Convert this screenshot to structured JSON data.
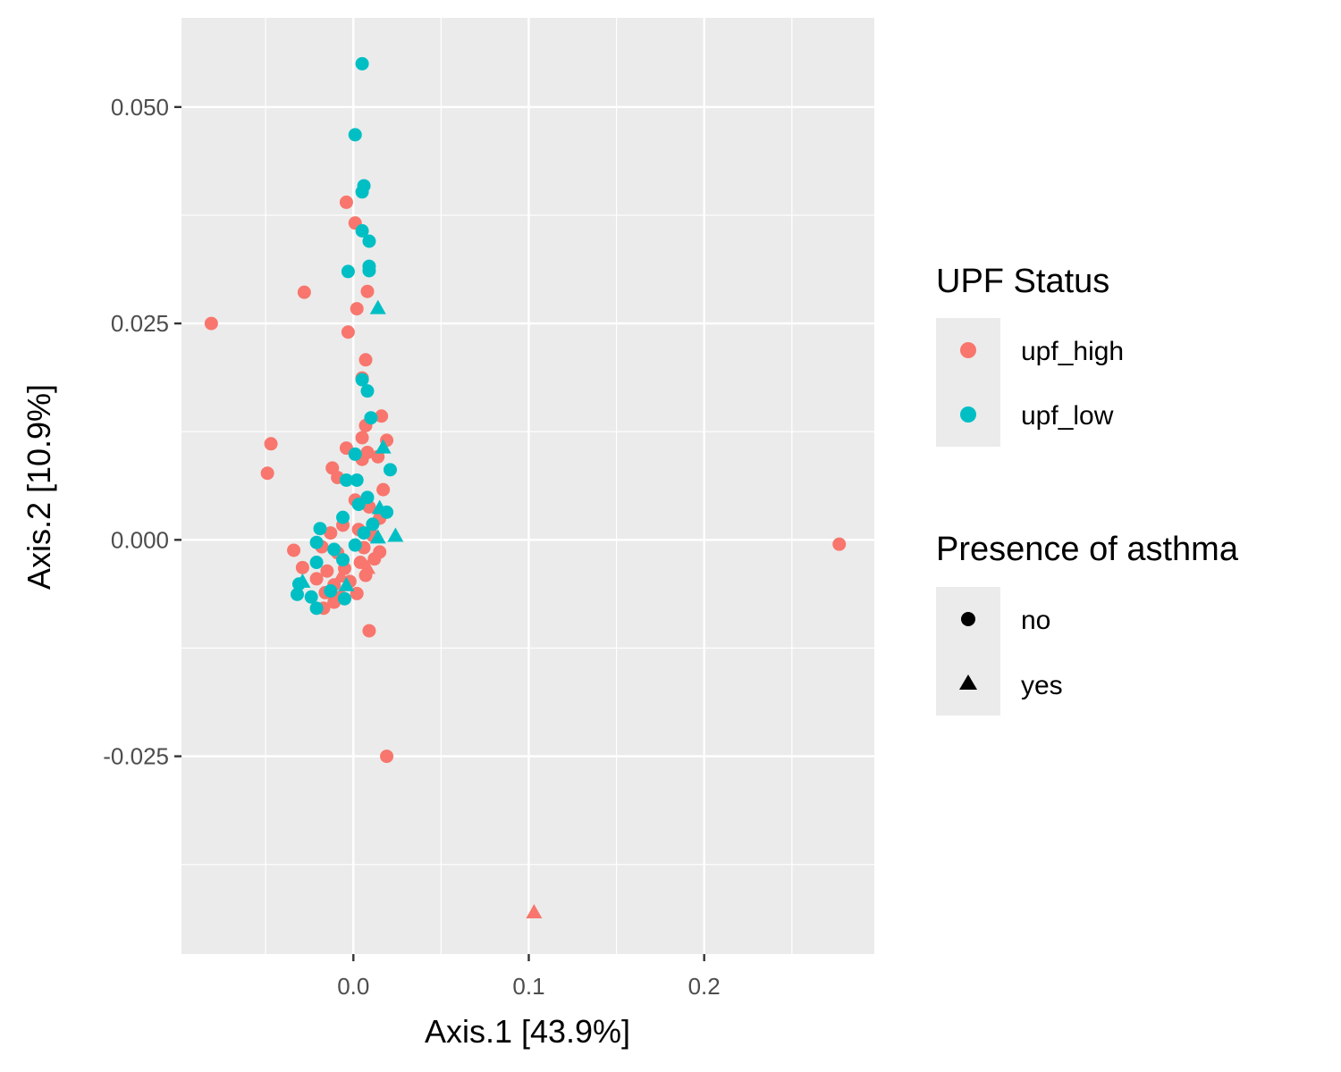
{
  "chart_data": {
    "type": "scatter",
    "xlabel": "Axis.1   [43.9%]",
    "ylabel": "Axis.2   [10.9%]",
    "xlim": [
      -0.098,
      0.297
    ],
    "ylim": [
      -0.04785,
      0.0603
    ],
    "x_ticks": [
      0.0,
      0.1,
      0.2
    ],
    "x_tick_labels": [
      "0.0",
      "0.1",
      "0.2"
    ],
    "y_ticks": [
      -0.025,
      0.0,
      0.025,
      0.05
    ],
    "y_tick_labels": [
      "-0.025",
      "0.000",
      "0.025",
      "0.050"
    ],
    "grid": true,
    "legend_placement": "right",
    "legends": [
      {
        "title": "UPF Status",
        "entries": [
          {
            "label": "upf_high",
            "color": "#F8766D",
            "shape": "circle"
          },
          {
            "label": "upf_low",
            "color": "#00BFC4",
            "shape": "circle"
          }
        ]
      },
      {
        "title": "Presence of asthma",
        "entries": [
          {
            "label": "no",
            "color": "#000000",
            "shape": "circle"
          },
          {
            "label": "yes",
            "color": "#000000",
            "shape": "triangle"
          }
        ]
      }
    ],
    "colors": {
      "upf_high": "#F8766D",
      "upf_low": "#00BFC4"
    },
    "series": [
      {
        "name": "upf_high",
        "points": [
          {
            "x": -0.081,
            "y": 0.025,
            "asthma": "no"
          },
          {
            "x": -0.047,
            "y": 0.0111,
            "asthma": "no"
          },
          {
            "x": -0.049,
            "y": 0.0077,
            "asthma": "no"
          },
          {
            "x": -0.028,
            "y": 0.0286,
            "asthma": "no"
          },
          {
            "x": -0.004,
            "y": 0.039,
            "asthma": "no"
          },
          {
            "x": 0.001,
            "y": 0.0366,
            "asthma": "no"
          },
          {
            "x": 0.008,
            "y": 0.0287,
            "asthma": "no"
          },
          {
            "x": 0.002,
            "y": 0.0267,
            "asthma": "no"
          },
          {
            "x": -0.003,
            "y": 0.024,
            "asthma": "no"
          },
          {
            "x": 0.007,
            "y": 0.0208,
            "asthma": "no"
          },
          {
            "x": 0.005,
            "y": 0.0187,
            "asthma": "no"
          },
          {
            "x": 0.016,
            "y": 0.0143,
            "asthma": "no"
          },
          {
            "x": 0.007,
            "y": 0.0132,
            "asthma": "no"
          },
          {
            "x": 0.005,
            "y": 0.0118,
            "asthma": "no"
          },
          {
            "x": 0.019,
            "y": 0.0115,
            "asthma": "no"
          },
          {
            "x": -0.004,
            "y": 0.0106,
            "asthma": "no"
          },
          {
            "x": 0.008,
            "y": 0.0101,
            "asthma": "no"
          },
          {
            "x": 0.005,
            "y": 0.0093,
            "asthma": "no"
          },
          {
            "x": 0.014,
            "y": 0.0096,
            "asthma": "no"
          },
          {
            "x": -0.012,
            "y": 0.0083,
            "asthma": "no"
          },
          {
            "x": -0.009,
            "y": 0.0072,
            "asthma": "no"
          },
          {
            "x": 0.017,
            "y": 0.0058,
            "asthma": "no"
          },
          {
            "x": 0.001,
            "y": 0.0046,
            "asthma": "no"
          },
          {
            "x": 0.009,
            "y": 0.0038,
            "asthma": "no"
          },
          {
            "x": 0.015,
            "y": 0.0025,
            "asthma": "no"
          },
          {
            "x": -0.006,
            "y": 0.0017,
            "asthma": "no"
          },
          {
            "x": -0.013,
            "y": 0.0008,
            "asthma": "no"
          },
          {
            "x": 0.003,
            "y": 0.0012,
            "asthma": "no"
          },
          {
            "x": 0.011,
            "y": 0.0005,
            "asthma": "no"
          },
          {
            "x": -0.034,
            "y": -0.0012,
            "asthma": "no"
          },
          {
            "x": -0.018,
            "y": -0.0008,
            "asthma": "no"
          },
          {
            "x": -0.009,
            "y": -0.0015,
            "asthma": "no"
          },
          {
            "x": 0.006,
            "y": -0.0009,
            "asthma": "no"
          },
          {
            "x": 0.015,
            "y": -0.0014,
            "asthma": "no"
          },
          {
            "x": -0.029,
            "y": -0.0032,
            "asthma": "no"
          },
          {
            "x": -0.015,
            "y": -0.0036,
            "asthma": "no"
          },
          {
            "x": -0.005,
            "y": -0.0033,
            "asthma": "no"
          },
          {
            "x": 0.004,
            "y": -0.0026,
            "asthma": "no"
          },
          {
            "x": 0.012,
            "y": -0.0022,
            "asthma": "no"
          },
          {
            "x": -0.021,
            "y": -0.0045,
            "asthma": "no"
          },
          {
            "x": -0.011,
            "y": -0.0052,
            "asthma": "no"
          },
          {
            "x": -0.002,
            "y": -0.0048,
            "asthma": "no"
          },
          {
            "x": 0.007,
            "y": -0.0041,
            "asthma": "no"
          },
          {
            "x": -0.016,
            "y": -0.0061,
            "asthma": "no"
          },
          {
            "x": -0.007,
            "y": -0.0066,
            "asthma": "no"
          },
          {
            "x": 0.002,
            "y": -0.0062,
            "asthma": "no"
          },
          {
            "x": -0.017,
            "y": -0.0079,
            "asthma": "no"
          },
          {
            "x": -0.011,
            "y": -0.0072,
            "asthma": "no"
          },
          {
            "x": 0.009,
            "y": -0.0105,
            "asthma": "no"
          },
          {
            "x": 0.019,
            "y": -0.025,
            "asthma": "no"
          },
          {
            "x": 0.277,
            "y": -0.0005,
            "asthma": "no"
          },
          {
            "x": 0.103,
            "y": -0.043,
            "asthma": "yes"
          },
          {
            "x": 0.008,
            "y": -0.0032,
            "asthma": "yes"
          },
          {
            "x": -0.007,
            "y": -0.0042,
            "asthma": "yes"
          }
        ]
      },
      {
        "name": "upf_low",
        "points": [
          {
            "x": 0.005,
            "y": 0.055,
            "asthma": "no"
          },
          {
            "x": 0.001,
            "y": 0.0468,
            "asthma": "no"
          },
          {
            "x": 0.006,
            "y": 0.0409,
            "asthma": "no"
          },
          {
            "x": 0.005,
            "y": 0.0402,
            "asthma": "no"
          },
          {
            "x": 0.005,
            "y": 0.0357,
            "asthma": "no"
          },
          {
            "x": 0.009,
            "y": 0.0345,
            "asthma": "no"
          },
          {
            "x": 0.009,
            "y": 0.0316,
            "asthma": "no"
          },
          {
            "x": -0.003,
            "y": 0.031,
            "asthma": "no"
          },
          {
            "x": 0.009,
            "y": 0.0311,
            "asthma": "no"
          },
          {
            "x": 0.005,
            "y": 0.0185,
            "asthma": "no"
          },
          {
            "x": 0.008,
            "y": 0.0172,
            "asthma": "no"
          },
          {
            "x": 0.01,
            "y": 0.0141,
            "asthma": "no"
          },
          {
            "x": 0.001,
            "y": 0.0099,
            "asthma": "no"
          },
          {
            "x": 0.021,
            "y": 0.0081,
            "asthma": "no"
          },
          {
            "x": -0.004,
            "y": 0.0069,
            "asthma": "no"
          },
          {
            "x": 0.002,
            "y": 0.0069,
            "asthma": "no"
          },
          {
            "x": 0.008,
            "y": 0.0049,
            "asthma": "no"
          },
          {
            "x": 0.003,
            "y": 0.0041,
            "asthma": "no"
          },
          {
            "x": 0.019,
            "y": 0.0032,
            "asthma": "no"
          },
          {
            "x": -0.006,
            "y": 0.0026,
            "asthma": "no"
          },
          {
            "x": 0.011,
            "y": 0.0018,
            "asthma": "no"
          },
          {
            "x": -0.019,
            "y": 0.0013,
            "asthma": "no"
          },
          {
            "x": 0.006,
            "y": 0.0008,
            "asthma": "no"
          },
          {
            "x": -0.021,
            "y": -0.0003,
            "asthma": "no"
          },
          {
            "x": -0.011,
            "y": -0.0011,
            "asthma": "no"
          },
          {
            "x": 0.001,
            "y": -0.0006,
            "asthma": "no"
          },
          {
            "x": -0.021,
            "y": -0.0026,
            "asthma": "no"
          },
          {
            "x": -0.006,
            "y": -0.0023,
            "asthma": "no"
          },
          {
            "x": -0.031,
            "y": -0.0051,
            "asthma": "no"
          },
          {
            "x": -0.024,
            "y": -0.0066,
            "asthma": "no"
          },
          {
            "x": -0.013,
            "y": -0.0059,
            "asthma": "no"
          },
          {
            "x": -0.032,
            "y": -0.0063,
            "asthma": "no"
          },
          {
            "x": -0.021,
            "y": -0.0079,
            "asthma": "no"
          },
          {
            "x": -0.005,
            "y": -0.0068,
            "asthma": "no"
          },
          {
            "x": 0.014,
            "y": 0.0268,
            "asthma": "yes"
          },
          {
            "x": 0.017,
            "y": 0.0107,
            "asthma": "yes"
          },
          {
            "x": 0.015,
            "y": 0.0037,
            "asthma": "yes"
          },
          {
            "x": 0.024,
            "y": 0.0005,
            "asthma": "yes"
          },
          {
            "x": 0.014,
            "y": 0.0003,
            "asthma": "yes"
          },
          {
            "x": -0.029,
            "y": -0.0048,
            "asthma": "yes"
          },
          {
            "x": -0.004,
            "y": -0.0052,
            "asthma": "yes"
          }
        ]
      }
    ]
  }
}
